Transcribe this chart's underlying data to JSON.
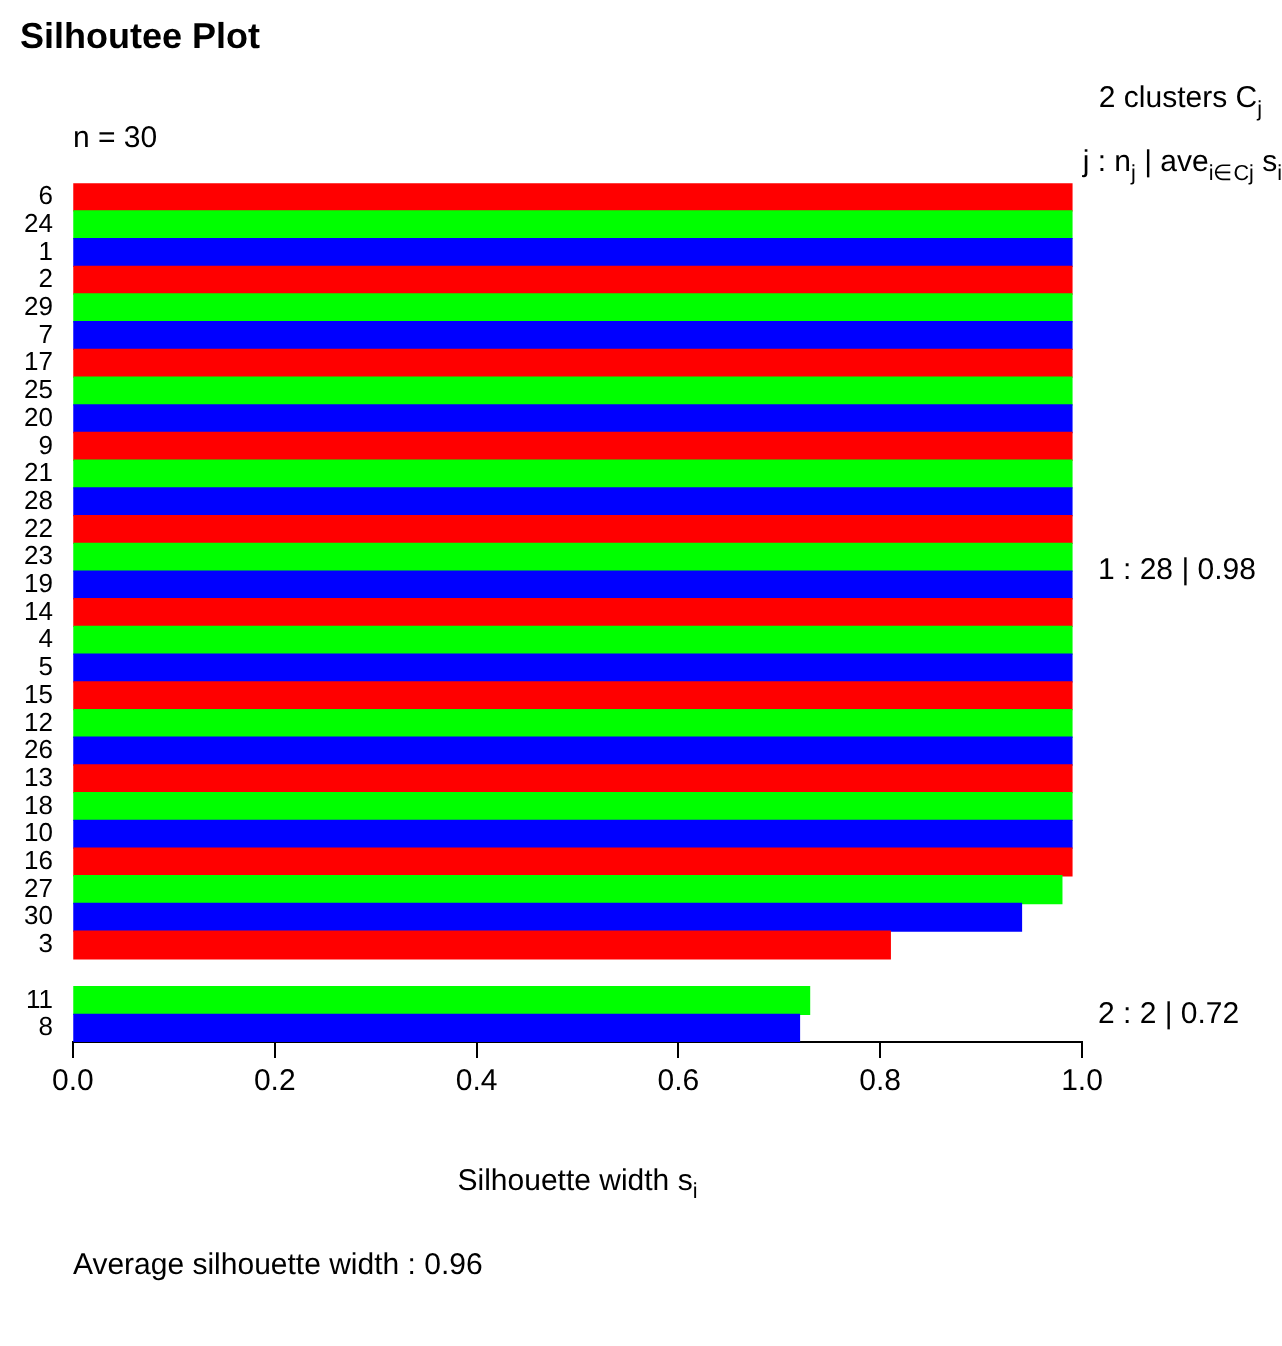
{
  "chart_data": {
    "type": "bar",
    "orientation": "horizontal",
    "title": "Silhoutee Plot",
    "xlabel": "Silhouette width s$_{i}$",
    "categories": [
      "6",
      "24",
      "1",
      "2",
      "29",
      "7",
      "17",
      "25",
      "20",
      "9",
      "21",
      "28",
      "22",
      "23",
      "19",
      "14",
      "4",
      "5",
      "15",
      "12",
      "26",
      "13",
      "18",
      "10",
      "16",
      "27",
      "30",
      "3",
      null,
      "11",
      "8"
    ],
    "values": [
      0.99,
      0.99,
      0.99,
      0.99,
      0.99,
      0.99,
      0.99,
      0.99,
      0.99,
      0.99,
      0.99,
      0.99,
      0.99,
      0.99,
      0.99,
      0.99,
      0.99,
      0.99,
      0.99,
      0.99,
      0.99,
      0.99,
      0.99,
      0.99,
      0.99,
      0.98,
      0.94,
      0.81,
      null,
      0.73,
      0.72
    ],
    "colors": [
      "#ff0000",
      "#00ff00",
      "#0000ff",
      "#ff0000",
      "#00ff00",
      "#0000ff",
      "#ff0000",
      "#00ff00",
      "#0000ff",
      "#ff0000",
      "#00ff00",
      "#0000ff",
      "#ff0000",
      "#00ff00",
      "#0000ff",
      "#ff0000",
      "#00ff00",
      "#0000ff",
      "#ff0000",
      "#00ff00",
      "#0000ff",
      "#ff0000",
      "#00ff00",
      "#0000ff",
      "#ff0000",
      "#00ff00",
      "#0000ff",
      "#ff0000",
      null,
      "#00ff00",
      "#0000ff"
    ],
    "xlim": [
      0,
      1
    ],
    "xticks": [
      {
        "value": 0,
        "label": "0.0"
      },
      0.2,
      0.4,
      0.6,
      0.8,
      {
        "value": 1,
        "label": "1.0"
      }
    ],
    "annotations": [
      "n = 30",
      "2 clusters C$_{j}$",
      "j : n$_{j}$ | ave$_{i∈Cj}$ s$_{i}$",
      "1 : 28 | 0.98",
      "2 : 2 | 0.72",
      "Average silhouette width : 0.96"
    ],
    "legend": false,
    "grid": false
  }
}
